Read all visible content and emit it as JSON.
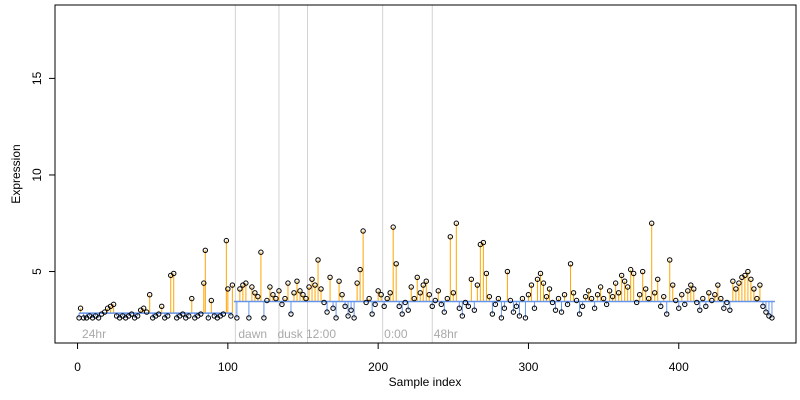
{
  "chart_data": {
    "type": "scatter",
    "title": "",
    "xlabel": "Sample index",
    "ylabel": "Expression",
    "xlim": [
      -15,
      478
    ],
    "ylim": [
      1.3,
      18.8
    ],
    "x_ticks": [
      0,
      100,
      200,
      300,
      400
    ],
    "y_ticks": [
      5,
      10,
      15
    ],
    "grid": false,
    "baseline_segments": [
      {
        "x0": 1,
        "x1": 103,
        "value": 2.85
      },
      {
        "x0": 104,
        "x1": 464,
        "value": 3.45
      }
    ],
    "vertical_markers": [
      105,
      134,
      153,
      203,
      236
    ],
    "annotations": [
      {
        "x": 3,
        "label": "24hr"
      },
      {
        "x": 107,
        "label": "dawn"
      },
      {
        "x": 133,
        "label": "dusk"
      },
      {
        "x": 152,
        "label": "12:00"
      },
      {
        "x": 204,
        "label": "0:00"
      },
      {
        "x": 237,
        "label": "48hr"
      }
    ],
    "colors": {
      "high_line": "#ffa500",
      "low_line": "#6495ed",
      "points": "#000000",
      "markers": "#d3d3d3",
      "annotation": "#a9a9a9"
    },
    "points": [
      [
        1,
        2.6
      ],
      [
        2,
        3.1
      ],
      [
        4,
        2.6
      ],
      [
        6,
        2.6
      ],
      [
        8,
        2.7
      ],
      [
        10,
        2.6
      ],
      [
        12,
        2.7
      ],
      [
        14,
        2.6
      ],
      [
        16,
        2.8
      ],
      [
        18,
        2.9
      ],
      [
        20,
        3.1
      ],
      [
        22,
        3.2
      ],
      [
        24,
        3.3
      ],
      [
        26,
        2.7
      ],
      [
        28,
        2.6
      ],
      [
        30,
        2.7
      ],
      [
        32,
        2.6
      ],
      [
        34,
        2.7
      ],
      [
        36,
        2.8
      ],
      [
        38,
        2.6
      ],
      [
        40,
        2.7
      ],
      [
        42,
        3.0
      ],
      [
        44,
        3.1
      ],
      [
        46,
        2.9
      ],
      [
        48,
        3.8
      ],
      [
        50,
        2.6
      ],
      [
        52,
        2.7
      ],
      [
        54,
        2.8
      ],
      [
        56,
        3.2
      ],
      [
        58,
        2.6
      ],
      [
        60,
        2.7
      ],
      [
        62,
        4.8
      ],
      [
        64,
        4.9
      ],
      [
        66,
        2.6
      ],
      [
        68,
        2.7
      ],
      [
        70,
        2.8
      ],
      [
        72,
        2.6
      ],
      [
        74,
        2.7
      ],
      [
        76,
        3.6
      ],
      [
        78,
        2.6
      ],
      [
        80,
        2.7
      ],
      [
        82,
        2.8
      ],
      [
        84,
        4.4
      ],
      [
        85,
        6.1
      ],
      [
        87,
        2.6
      ],
      [
        89,
        3.5
      ],
      [
        91,
        2.7
      ],
      [
        93,
        2.6
      ],
      [
        95,
        2.7
      ],
      [
        97,
        2.8
      ],
      [
        99,
        6.6
      ],
      [
        100,
        4.1
      ],
      [
        102,
        2.7
      ],
      [
        103,
        4.3
      ],
      [
        106,
        2.6
      ],
      [
        108,
        4.1
      ],
      [
        110,
        4.3
      ],
      [
        112,
        4.4
      ],
      [
        114,
        2.6
      ],
      [
        116,
        4.2
      ],
      [
        118,
        3.9
      ],
      [
        120,
        3.7
      ],
      [
        122,
        6.0
      ],
      [
        124,
        2.6
      ],
      [
        126,
        3.5
      ],
      [
        128,
        4.2
      ],
      [
        130,
        3.8
      ],
      [
        132,
        3.6
      ],
      [
        134,
        4.0
      ],
      [
        136,
        3.3
      ],
      [
        138,
        3.6
      ],
      [
        140,
        4.4
      ],
      [
        142,
        2.8
      ],
      [
        144,
        3.9
      ],
      [
        146,
        4.5
      ],
      [
        148,
        4.0
      ],
      [
        150,
        3.8
      ],
      [
        152,
        3.6
      ],
      [
        154,
        4.2
      ],
      [
        156,
        4.6
      ],
      [
        158,
        4.3
      ],
      [
        160,
        5.6
      ],
      [
        162,
        4.1
      ],
      [
        164,
        3.4
      ],
      [
        166,
        2.9
      ],
      [
        168,
        4.7
      ],
      [
        170,
        3.1
      ],
      [
        172,
        2.6
      ],
      [
        174,
        4.5
      ],
      [
        176,
        3.8
      ],
      [
        178,
        3.2
      ],
      [
        180,
        2.7
      ],
      [
        182,
        3.0
      ],
      [
        184,
        2.6
      ],
      [
        186,
        4.4
      ],
      [
        188,
        5.1
      ],
      [
        190,
        7.1
      ],
      [
        192,
        3.4
      ],
      [
        194,
        3.6
      ],
      [
        196,
        2.8
      ],
      [
        198,
        3.3
      ],
      [
        200,
        4.0
      ],
      [
        202,
        3.8
      ],
      [
        204,
        3.2
      ],
      [
        206,
        3.6
      ],
      [
        208,
        3.9
      ],
      [
        210,
        7.3
      ],
      [
        212,
        5.4
      ],
      [
        214,
        3.2
      ],
      [
        216,
        2.8
      ],
      [
        218,
        3.4
      ],
      [
        220,
        3.0
      ],
      [
        222,
        4.2
      ],
      [
        224,
        3.6
      ],
      [
        226,
        4.7
      ],
      [
        228,
        3.9
      ],
      [
        230,
        4.3
      ],
      [
        232,
        4.5
      ],
      [
        234,
        3.8
      ],
      [
        236,
        3.2
      ],
      [
        238,
        3.5
      ],
      [
        240,
        4.0
      ],
      [
        242,
        3.3
      ],
      [
        244,
        2.9
      ],
      [
        246,
        3.6
      ],
      [
        248,
        6.8
      ],
      [
        250,
        3.9
      ],
      [
        252,
        7.5
      ],
      [
        254,
        3.1
      ],
      [
        256,
        2.7
      ],
      [
        258,
        3.4
      ],
      [
        260,
        3.2
      ],
      [
        262,
        4.6
      ],
      [
        264,
        3.0
      ],
      [
        266,
        4.3
      ],
      [
        268,
        6.4
      ],
      [
        270,
        6.5
      ],
      [
        272,
        4.9
      ],
      [
        274,
        3.7
      ],
      [
        276,
        2.8
      ],
      [
        278,
        3.3
      ],
      [
        280,
        3.6
      ],
      [
        282,
        2.6
      ],
      [
        284,
        3.1
      ],
      [
        286,
        5.0
      ],
      [
        288,
        3.5
      ],
      [
        290,
        2.9
      ],
      [
        292,
        3.2
      ],
      [
        294,
        2.7
      ],
      [
        296,
        3.6
      ],
      [
        298,
        2.6
      ],
      [
        300,
        3.8
      ],
      [
        302,
        4.3
      ],
      [
        304,
        3.1
      ],
      [
        306,
        4.6
      ],
      [
        308,
        4.9
      ],
      [
        310,
        4.4
      ],
      [
        312,
        3.7
      ],
      [
        314,
        4.1
      ],
      [
        316,
        3.4
      ],
      [
        318,
        3.0
      ],
      [
        320,
        3.6
      ],
      [
        322,
        2.9
      ],
      [
        324,
        3.8
      ],
      [
        326,
        3.3
      ],
      [
        328,
        5.4
      ],
      [
        330,
        3.9
      ],
      [
        332,
        3.5
      ],
      [
        334,
        2.8
      ],
      [
        336,
        3.2
      ],
      [
        338,
        3.7
      ],
      [
        340,
        4.0
      ],
      [
        342,
        3.6
      ],
      [
        344,
        3.1
      ],
      [
        346,
        3.8
      ],
      [
        348,
        4.2
      ],
      [
        350,
        3.6
      ],
      [
        352,
        3.3
      ],
      [
        354,
        4.0
      ],
      [
        356,
        3.7
      ],
      [
        358,
        4.4
      ],
      [
        360,
        3.9
      ],
      [
        362,
        4.8
      ],
      [
        364,
        4.5
      ],
      [
        366,
        4.2
      ],
      [
        368,
        5.1
      ],
      [
        370,
        4.9
      ],
      [
        372,
        3.4
      ],
      [
        374,
        3.8
      ],
      [
        376,
        5.0
      ],
      [
        378,
        4.1
      ],
      [
        380,
        3.6
      ],
      [
        382,
        7.5
      ],
      [
        384,
        3.9
      ],
      [
        386,
        4.6
      ],
      [
        388,
        3.2
      ],
      [
        390,
        3.7
      ],
      [
        392,
        2.8
      ],
      [
        394,
        5.6
      ],
      [
        396,
        4.3
      ],
      [
        398,
        3.5
      ],
      [
        400,
        3.1
      ],
      [
        402,
        3.8
      ],
      [
        404,
        3.3
      ],
      [
        406,
        4.0
      ],
      [
        408,
        4.3
      ],
      [
        410,
        4.1
      ],
      [
        412,
        3.4
      ],
      [
        414,
        3.0
      ],
      [
        416,
        3.6
      ],
      [
        418,
        3.2
      ],
      [
        420,
        3.9
      ],
      [
        422,
        3.5
      ],
      [
        424,
        3.8
      ],
      [
        426,
        4.3
      ],
      [
        428,
        3.6
      ],
      [
        430,
        3.1
      ],
      [
        432,
        3.4
      ],
      [
        434,
        3.0
      ],
      [
        436,
        4.5
      ],
      [
        438,
        4.1
      ],
      [
        440,
        4.4
      ],
      [
        442,
        4.7
      ],
      [
        444,
        4.8
      ],
      [
        446,
        5.0
      ],
      [
        448,
        4.6
      ],
      [
        450,
        4.1
      ],
      [
        452,
        3.6
      ],
      [
        454,
        4.3
      ],
      [
        456,
        3.2
      ],
      [
        458,
        2.9
      ],
      [
        460,
        2.7
      ],
      [
        462,
        2.6
      ]
    ]
  }
}
